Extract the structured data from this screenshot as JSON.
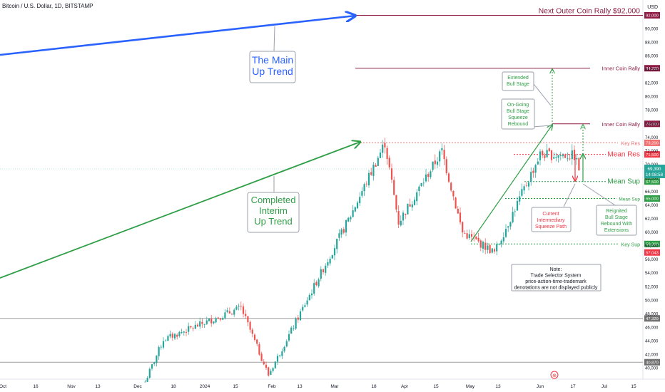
{
  "header": {
    "title": "Bitcoin / U.S. Dollar, 1D, BITSTAMP"
  },
  "axis": {
    "currency": "USD",
    "y_ticks": [
      40000,
      42000,
      44000,
      46000,
      48000,
      50000,
      52000,
      54000,
      56000,
      58000,
      60000,
      62000,
      64000,
      66000,
      68000,
      70000,
      72000,
      74000,
      76000,
      78000,
      80000,
      82000,
      84000,
      86000,
      88000,
      90000
    ],
    "y_tick_labels": [
      "40,000",
      "42,000",
      "44,000",
      "46,000",
      "48,000",
      "50,000",
      "52,000",
      "54,000",
      "56,000",
      "58,000",
      "60,000",
      "62,000",
      "64,000",
      "66,000",
      "68,000",
      "70,000",
      "72,000",
      "74,000",
      "76,000",
      "78,000",
      "80,000",
      "82,000",
      "84,000",
      "86,000",
      "88,000",
      "90,000"
    ],
    "x_labels": [
      "Oct",
      "16",
      "Nov",
      "13",
      "Dec",
      "18",
      "2024",
      "15",
      "Feb",
      "13",
      "Mar",
      "18",
      "Apr",
      "15",
      "May",
      "13",
      "Jun",
      "17",
      "Jul",
      "15"
    ]
  },
  "levels": [
    {
      "id": "next-outer",
      "value": 92000,
      "label": "Next Outer Coin Rally $92,000",
      "badge": "92,000",
      "color": "#8e1b44"
    },
    {
      "id": "inner-84",
      "value": 84200,
      "label": "Inner Coin Rally",
      "badge": "84,200",
      "color": "#8e1b44"
    },
    {
      "id": "inner-76",
      "value": 76000,
      "label": "Inner Coin Rally",
      "badge": "76,000",
      "color": "#8e1b44"
    },
    {
      "id": "key-res",
      "value": 73200,
      "label": "Key Res",
      "badge": "73,200",
      "color": "#f26d6d"
    },
    {
      "id": "mean-res",
      "value": 71500,
      "label": "Mean Res",
      "badge": "71,500",
      "color": "#f23645"
    },
    {
      "id": "mean-sup",
      "value": 67500,
      "label": "Mean Sup",
      "badge": "67,500",
      "color": "#2e9e46"
    },
    {
      "id": "mean-sup-65",
      "value": 65000,
      "label": "Mean Sup",
      "badge": "65,000",
      "color": "#2e9e46"
    },
    {
      "id": "key-sup",
      "value": 58300,
      "label": "Key Sup",
      "badge": "58,300",
      "color": "#2e9e46"
    },
    {
      "id": "low",
      "value": 57043,
      "label": "",
      "badge": "57,043",
      "color": "#f23645"
    },
    {
      "id": "grey-47",
      "value": 47329,
      "label": "",
      "badge": "47,329",
      "color": "#707070"
    },
    {
      "id": "grey-40",
      "value": 40870,
      "label": "",
      "badge": "40,870",
      "color": "#707070"
    }
  ],
  "current_price": {
    "value": 69390,
    "label": "69,390",
    "countdown": "14:08:58",
    "color": "#26a69a"
  },
  "annotations": {
    "main_trend": "The Main\nUp Trend",
    "interim_trend": "Completed\nInterim\nUp Trend",
    "extended": "Extended\nBull Stage",
    "ongoing": "On-Going\nBull Stage\nSqueeze\nRebound",
    "current_path": "Current\nIntermediary\nSqueeze Path",
    "reignited": "Reignited\nBull Stage\nRebound With\nExtensions",
    "note": "Note:\nTrade Selector System\nprice-action-time-trademark\ndenotations are not displayed publicly"
  },
  "colors": {
    "up": "#26a69a",
    "down": "#ef5350",
    "blue": "#2962ff",
    "green": "#2e9e46",
    "red": "#f23645"
  },
  "chart_data": {
    "type": "candlestick",
    "title": "Bitcoin / U.S. Dollar, 1D, BITSTAMP",
    "ylabel": "USD",
    "ylim": [
      39000,
      93500
    ],
    "x_start": "2023-09-29",
    "x_end": "2024-07-24",
    "last_close": 69390,
    "key_points": [
      {
        "date": "2023-11-30",
        "price": 38000
      },
      {
        "date": "2023-12-08",
        "price": 44200
      },
      {
        "date": "2024-01-11",
        "price": 48900
      },
      {
        "date": "2024-01-23",
        "price": 39000
      },
      {
        "date": "2024-02-28",
        "price": 62500
      },
      {
        "date": "2024-03-14",
        "price": 73200
      },
      {
        "date": "2024-03-20",
        "price": 61500
      },
      {
        "date": "2024-04-08",
        "price": 72000
      },
      {
        "date": "2024-04-17",
        "price": 60000
      },
      {
        "date": "2024-05-01",
        "price": 57043
      },
      {
        "date": "2024-05-21",
        "price": 71500
      },
      {
        "date": "2024-06-05",
        "price": 71300
      },
      {
        "date": "2024-06-07",
        "price": 69390
      }
    ]
  }
}
